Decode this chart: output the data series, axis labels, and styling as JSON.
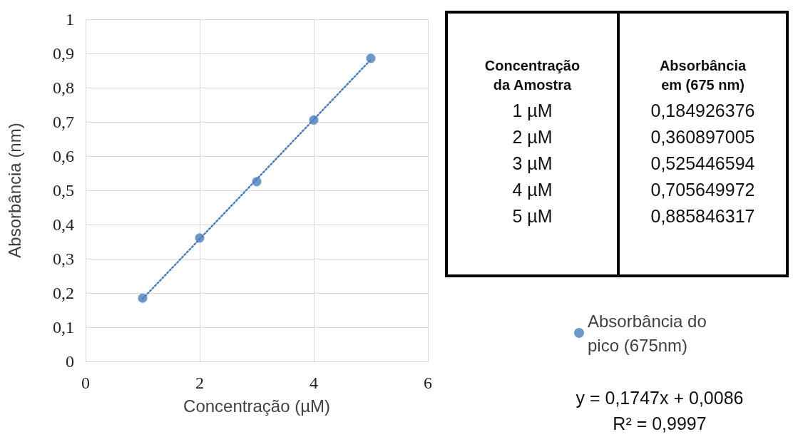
{
  "chart_data": {
    "type": "scatter",
    "xlabel": "Concentração (µM)",
    "ylabel": "Absorbância (nm)",
    "x": [
      1,
      2,
      3,
      4,
      5
    ],
    "series": [
      {
        "name": "Absorbância do pico (675nm)",
        "color": "#4a7ebb",
        "values": [
          0.184926376,
          0.360897005,
          0.525446594,
          0.705649972,
          0.885846317
        ]
      },
      {
        "type": "line",
        "color": "#4a7ebb",
        "x": [
          1,
          5
        ],
        "values": [
          0.183,
          0.882
        ],
        "line_style": "dotted",
        "marker": "none"
      }
    ],
    "annotations": [
      "Concentração da Amostra",
      "Absorbância em (675 nm)",
      "1 µM",
      "2 µM",
      "3 µM",
      "4 µM",
      "5 µM",
      "0,184926376",
      "0,360897005",
      "0,525446594",
      "0,705649972",
      "0,885846317",
      "y = 0,1747x + 0,0086",
      "R² = 0,9997"
    ],
    "xlim": [
      0,
      6
    ],
    "xticks": [
      0,
      2,
      4,
      6
    ],
    "ylim": [
      0,
      1
    ],
    "yticks": [
      0,
      {
        "value": 0.1,
        "label": "0,1"
      },
      {
        "value": 0.2,
        "label": "0,2"
      },
      {
        "value": 0.3,
        "label": "0,3"
      },
      {
        "value": 0.4,
        "label": "0,4"
      },
      {
        "value": 0.5,
        "label": "0,5"
      },
      {
        "value": 0.6,
        "label": "0,6"
      },
      {
        "value": 0.7,
        "label": "0,7"
      },
      {
        "value": 0.8,
        "label": "0,8"
      },
      {
        "value": 0.9,
        "label": "0,9"
      },
      1
    ],
    "grid": true,
    "legend": "right",
    "marker": "circle"
  }
}
